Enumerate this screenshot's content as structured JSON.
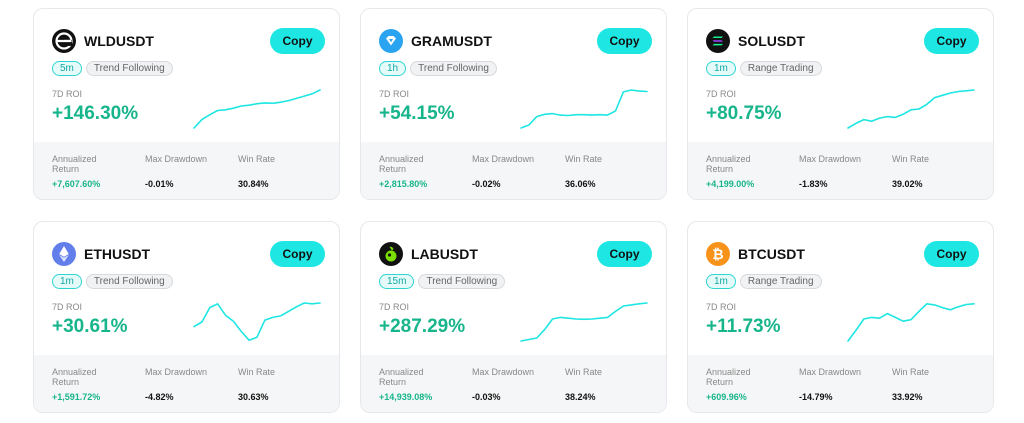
{
  "common": {
    "copy_label": "Copy",
    "roi_label": "7D ROI",
    "annualized_label": "Annualized Return",
    "drawdown_label": "Max Drawdown",
    "winrate_label": "Win Rate"
  },
  "colors": {
    "accent": "#1ee6e2",
    "positive": "#17b58b",
    "sparkline": "#1ee6e2"
  },
  "cards": [
    {
      "pair": "WLDUSDT",
      "icon": "worldcoin-logo-icon",
      "interval": "5m",
      "strategy": "Trend Following",
      "roi": "+146.30%",
      "annualized": "+7,607.60%",
      "drawdown": "-0.01%",
      "winrate": "30.84%",
      "spark": [
        0.0,
        0.22,
        0.35,
        0.46,
        0.48,
        0.52,
        0.58,
        0.6,
        0.64,
        0.66,
        0.65,
        0.68,
        0.72,
        0.78,
        0.84,
        0.9,
        1.0
      ]
    },
    {
      "pair": "GRAMUSDT",
      "icon": "gram-logo-icon",
      "interval": "1h",
      "strategy": "Trend Following",
      "roi": "+54.15%",
      "annualized": "+2,815.80%",
      "drawdown": "-0.02%",
      "winrate": "36.06%",
      "spark": [
        0.0,
        0.08,
        0.3,
        0.36,
        0.38,
        0.34,
        0.33,
        0.35,
        0.35,
        0.34,
        0.35,
        0.34,
        0.45,
        0.95,
        1.0,
        0.97,
        0.96
      ]
    },
    {
      "pair": "SOLUSDT",
      "icon": "solana-logo-icon",
      "interval": "1m",
      "strategy": "Range Trading",
      "roi": "+80.75%",
      "annualized": "+4,199.00%",
      "drawdown": "-1.83%",
      "winrate": "39.02%",
      "spark": [
        0.0,
        0.12,
        0.22,
        0.18,
        0.26,
        0.3,
        0.28,
        0.36,
        0.48,
        0.5,
        0.62,
        0.8,
        0.86,
        0.92,
        0.96,
        0.98,
        1.0
      ]
    },
    {
      "pair": "ETHUSDT",
      "icon": "ethereum-logo-icon",
      "interval": "1m",
      "strategy": "Trend Following",
      "roi": "+30.61%",
      "annualized": "+1,591.72%",
      "drawdown": "-4.82%",
      "winrate": "30.63%",
      "spark": [
        0.38,
        0.5,
        0.88,
        0.98,
        0.68,
        0.52,
        0.25,
        0.02,
        0.1,
        0.55,
        0.62,
        0.66,
        0.78,
        0.9,
        1.0,
        0.98,
        1.0
      ]
    },
    {
      "pair": "LABUSDT",
      "icon": "lab-logo-icon",
      "interval": "15m",
      "strategy": "Trend Following",
      "roi": "+287.29%",
      "annualized": "+14,939.08%",
      "drawdown": "-0.03%",
      "winrate": "38.24%",
      "spark": [
        0.0,
        0.04,
        0.08,
        0.3,
        0.58,
        0.62,
        0.6,
        0.58,
        0.57,
        0.58,
        0.6,
        0.62,
        0.78,
        0.92,
        0.95,
        0.98,
        1.0
      ]
    },
    {
      "pair": "BTCUSDT",
      "icon": "bitcoin-logo-icon",
      "interval": "1m",
      "strategy": "Range Trading",
      "roi": "+11.73%",
      "annualized": "+609.96%",
      "drawdown": "-14.79%",
      "winrate": "33.92%",
      "spark": [
        0.0,
        0.28,
        0.58,
        0.62,
        0.6,
        0.72,
        0.62,
        0.52,
        0.56,
        0.78,
        0.98,
        0.95,
        0.88,
        0.82,
        0.9,
        0.96,
        0.98
      ]
    }
  ]
}
